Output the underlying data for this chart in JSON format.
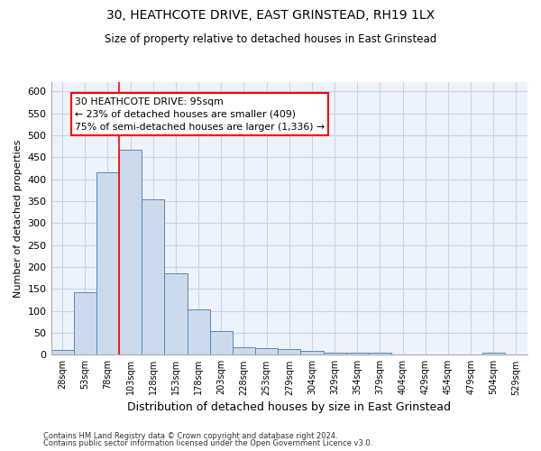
{
  "title1": "30, HEATHCOTE DRIVE, EAST GRINSTEAD, RH19 1LX",
  "title2": "Size of property relative to detached houses in East Grinstead",
  "xlabel": "Distribution of detached houses by size in East Grinstead",
  "ylabel": "Number of detached properties",
  "bar_labels": [
    "28sqm",
    "53sqm",
    "78sqm",
    "103sqm",
    "128sqm",
    "153sqm",
    "178sqm",
    "203sqm",
    "228sqm",
    "253sqm",
    "279sqm",
    "304sqm",
    "329sqm",
    "354sqm",
    "379sqm",
    "404sqm",
    "429sqm",
    "454sqm",
    "479sqm",
    "504sqm",
    "529sqm"
  ],
  "bar_heights": [
    10,
    143,
    415,
    467,
    355,
    185,
    103,
    54,
    18,
    15,
    12,
    9,
    5,
    4,
    4,
    0,
    0,
    0,
    0,
    5,
    0
  ],
  "bar_color": "#ccdaeb",
  "bar_edge_color": "#5588bb",
  "ylim": [
    0,
    620
  ],
  "yticks": [
    0,
    50,
    100,
    150,
    200,
    250,
    300,
    350,
    400,
    450,
    500,
    550,
    600
  ],
  "red_line_index": 3,
  "annotation_text": "30 HEATHCOTE DRIVE: 95sqm\n← 23% of detached houses are smaller (409)\n75% of semi-detached houses are larger (1,336) →",
  "footnote1": "Contains HM Land Registry data © Crown copyright and database right 2024.",
  "footnote2": "Contains public sector information licensed under the Open Government Licence v3.0.",
  "grid_color": "#c8d4e8",
  "background_color": "#eef2fa"
}
